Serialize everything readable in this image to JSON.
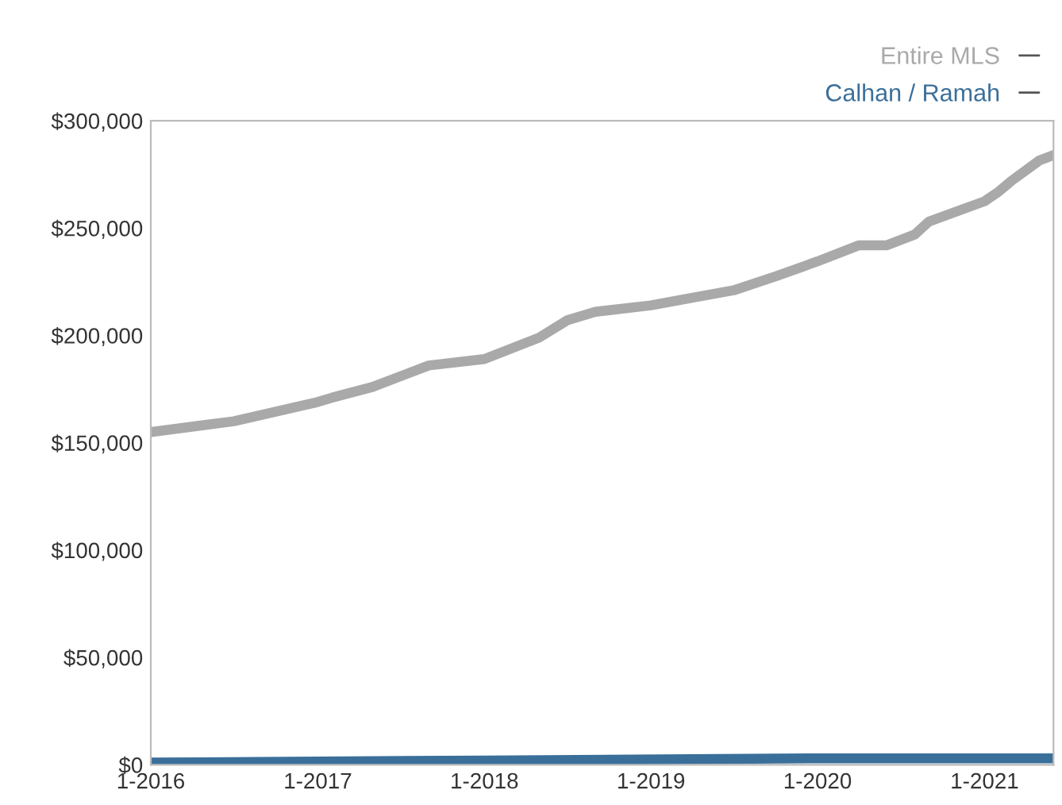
{
  "chart_data": {
    "type": "line",
    "series": [
      {
        "name": "Entire MLS",
        "color": "#a9a9a9",
        "x": [
          "2016-01",
          "2016-07",
          "2017-01",
          "2017-02",
          "2017-05",
          "2017-09",
          "2018-01",
          "2018-05",
          "2018-07",
          "2018-09",
          "2019-01",
          "2019-04",
          "2019-07",
          "2019-10",
          "2020-01",
          "2020-04",
          "2020-06",
          "2020-08",
          "2020-09",
          "2021-01",
          "2021-02",
          "2021-03",
          "2021-05",
          "2021-06"
        ],
        "values": [
          155000,
          160000,
          169000,
          171000,
          176000,
          186000,
          189000,
          199000,
          207000,
          211000,
          214000,
          217500,
          221000,
          227500,
          234500,
          242000,
          242000,
          247000,
          253000,
          262500,
          267000,
          272000,
          281500,
          284000
        ]
      },
      {
        "name": "Calhan / Ramah",
        "color": "#3a6f9a",
        "x": [
          "2016-01",
          "2018-01",
          "2020-01",
          "2021-06"
        ],
        "values": [
          1000,
          2000,
          3000,
          3000
        ]
      }
    ],
    "xlim": [
      "2016-01",
      "2021-06"
    ],
    "xticks": [
      {
        "value": "2016-01",
        "label": "1-2016"
      },
      {
        "value": "2017-01",
        "label": "1-2017"
      },
      {
        "value": "2018-01",
        "label": "1-2018"
      },
      {
        "value": "2019-01",
        "label": "1-2019"
      },
      {
        "value": "2020-01",
        "label": "1-2020"
      },
      {
        "value": "2021-01",
        "label": "1-2021"
      }
    ],
    "ylim": [
      0,
      300000
    ],
    "yticks": [
      {
        "value": 0,
        "label": "$0"
      },
      {
        "value": 50000,
        "label": "$50,000"
      },
      {
        "value": 100000,
        "label": "$100,000"
      },
      {
        "value": 150000,
        "label": "$150,000"
      },
      {
        "value": 200000,
        "label": "$200,000"
      },
      {
        "value": 250000,
        "label": "$250,000"
      },
      {
        "value": 300000,
        "label": "$300,000"
      }
    ],
    "grid": false,
    "legend": "top right",
    "marker": "none",
    "line_style": "solid"
  }
}
